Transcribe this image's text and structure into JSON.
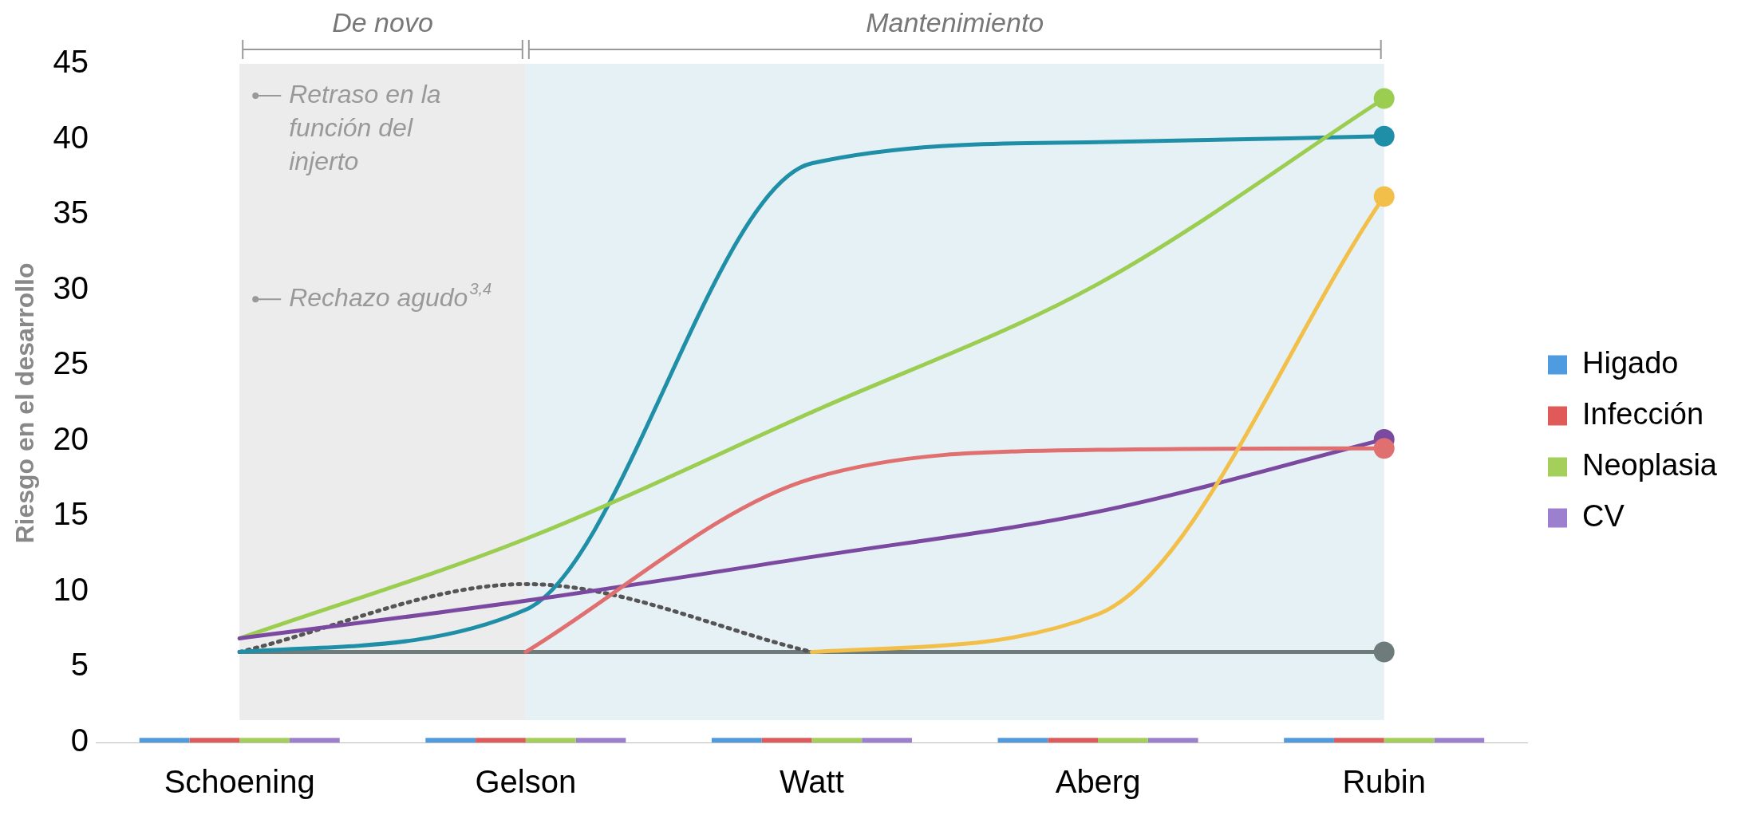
{
  "chart_data": {
    "type": "bar",
    "ylabel": "Riesgo en el desarrollo",
    "categories": [
      "Schoening",
      "Gelson",
      "Watt",
      "Aberg",
      "Rubin"
    ],
    "series": [
      {
        "name": "Higado",
        "color": "#4f9be0",
        "values": [
          0.3,
          0.3,
          0.3,
          0.3,
          0.3
        ]
      },
      {
        "name": "Infección",
        "color": "#e05a5a",
        "values": [
          0.3,
          0.3,
          0.3,
          0.3,
          0.3
        ]
      },
      {
        "name": "Neoplasia",
        "color": "#a4cf5a",
        "values": [
          0.3,
          0.3,
          0.3,
          0.3,
          0.3
        ]
      },
      {
        "name": "CV",
        "color": "#9d7fcf",
        "values": [
          0.3,
          0.3,
          0.3,
          0.3,
          0.3
        ]
      },
      {
        "type": "line",
        "color": "#6e7b7b",
        "values": [
          6,
          6,
          6,
          6,
          6
        ]
      },
      {
        "type": "line",
        "color": "#555555",
        "line_style": "dotted",
        "values": [
          6,
          10.5,
          6,
          null,
          null
        ]
      },
      {
        "type": "line",
        "color": "#1f8fa8",
        "values": [
          6,
          8.8,
          38.4,
          39.8,
          40.2
        ]
      },
      {
        "type": "line",
        "color": "#9acd50",
        "values": [
          6.9,
          13.5,
          21.9,
          30.4,
          42.7
        ]
      },
      {
        "type": "line",
        "color": "#7b4aa0",
        "values": [
          6.9,
          9.4,
          12.3,
          15.3,
          20.1
        ]
      },
      {
        "type": "line",
        "color": "#e07070",
        "values": [
          null,
          6,
          17.5,
          19.4,
          19.5
        ]
      },
      {
        "type": "line",
        "color": "#f2c04a",
        "values": [
          null,
          null,
          6,
          8.5,
          36.2
        ]
      }
    ],
    "ylim": [
      0,
      45
    ],
    "yticks": [
      0,
      5,
      10,
      15,
      20,
      25,
      30,
      35,
      40,
      45
    ],
    "grid": false,
    "legend": "right",
    "bands": [
      {
        "axis": "x",
        "from": "Schoening",
        "to": "Gelson",
        "label": "De novo",
        "color": "#ececec"
      },
      {
        "axis": "x",
        "from": "Gelson",
        "to": "Rubin",
        "label": "Mantenimiento",
        "color": "#e6f1f6"
      }
    ],
    "annotations": [
      "Retraso en la función del injerto",
      "Rechazo agudo$^{3,4}$"
    ]
  }
}
